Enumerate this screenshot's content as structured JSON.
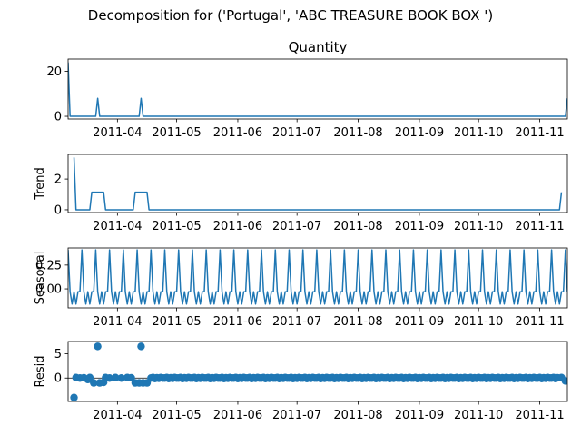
{
  "figure_title": "Decomposition for ('Portugal', 'ABC TREASURE BOOK BOX ')",
  "colors": {
    "line": "#1f77b4",
    "point": "#1f77b4",
    "axis": "#000000",
    "zero_line": "#000000"
  },
  "chart_data": [
    {
      "type": "line",
      "title": "Quantity",
      "ylabel": "",
      "xrange": [
        "2011-03-07",
        "2011-11-15"
      ],
      "ylim": [
        -1.2,
        25.5
      ],
      "yticks": [
        0,
        20
      ],
      "x_tick_labels": [
        "2011-04",
        "2011-05",
        "2011-06",
        "2011-07",
        "2011-08",
        "2011-09",
        "2011-10",
        "2011-11"
      ],
      "series": [
        {
          "points": [
            [
              "2011-03-07",
              24
            ],
            [
              "2011-03-08",
              0
            ],
            [
              "2011-03-21",
              0
            ],
            [
              "2011-03-22",
              8
            ],
            [
              "2011-03-23",
              0
            ],
            [
              "2011-04-12",
              0
            ],
            [
              "2011-04-13",
              8
            ],
            [
              "2011-04-14",
              0
            ],
            [
              "2011-11-14",
              0
            ],
            [
              "2011-11-15",
              8
            ]
          ]
        }
      ]
    },
    {
      "type": "line",
      "title": "",
      "ylabel": "Trend",
      "xrange": [
        "2011-03-07",
        "2011-11-15"
      ],
      "ylim": [
        -0.18,
        3.6
      ],
      "yticks": [
        0,
        2
      ],
      "x_tick_labels": [
        "2011-04",
        "2011-05",
        "2011-06",
        "2011-07",
        "2011-08",
        "2011-09",
        "2011-10",
        "2011-11"
      ],
      "series": [
        {
          "points": [
            [
              "2011-03-10",
              3.4
            ],
            [
              "2011-03-11",
              0
            ],
            [
              "2011-03-18",
              0
            ],
            [
              "2011-03-19",
              1.14
            ],
            [
              "2011-03-25",
              1.14
            ],
            [
              "2011-03-26",
              0
            ],
            [
              "2011-04-09",
              0
            ],
            [
              "2011-04-10",
              1.14
            ],
            [
              "2011-04-16",
              1.14
            ],
            [
              "2011-04-17",
              0
            ],
            [
              "2011-11-11",
              0
            ],
            [
              "2011-11-12",
              1.14
            ]
          ]
        }
      ]
    },
    {
      "type": "line",
      "title": "",
      "ylabel": "Seasonal",
      "xrange": [
        "2011-03-07",
        "2011-11-15"
      ],
      "ylim": [
        -0.2,
        0.43
      ],
      "yticks": [
        0.0,
        0.25
      ],
      "ytick_labels": [
        "0.00",
        "0.25"
      ],
      "x_tick_labels": [
        "2011-04",
        "2011-05",
        "2011-06",
        "2011-07",
        "2011-08",
        "2011-09",
        "2011-10",
        "2011-11"
      ],
      "seasonal_pattern": [
        0.41,
        -0.03,
        -0.16,
        -0.03,
        -0.16,
        -0.03,
        -0.03
      ],
      "pattern_start": "2011-03-07"
    },
    {
      "type": "scatter",
      "title": "",
      "ylabel": "Resid",
      "xrange": [
        "2011-03-07",
        "2011-11-15"
      ],
      "ylim": [
        -4.8,
        7.5
      ],
      "yticks": [
        0,
        5
      ],
      "x_tick_labels": [
        "2011-04",
        "2011-05",
        "2011-06",
        "2011-07",
        "2011-08",
        "2011-09",
        "2011-10",
        "2011-11"
      ],
      "points": [
        [
          "2011-03-10",
          -4.0
        ],
        [
          "2011-03-11",
          0.1
        ],
        [
          "2011-03-13",
          0.0
        ],
        [
          "2011-03-15",
          0.05
        ],
        [
          "2011-03-17",
          -0.3
        ],
        [
          "2011-03-18",
          0.1
        ],
        [
          "2011-03-20",
          -1.0
        ],
        [
          "2011-03-22",
          6.5
        ],
        [
          "2011-03-23",
          -1.0
        ],
        [
          "2011-03-25",
          -0.9
        ],
        [
          "2011-03-26",
          0.1
        ],
        [
          "2011-03-28",
          0.0
        ],
        [
          "2011-03-31",
          0.1
        ],
        [
          "2011-04-03",
          0.0
        ],
        [
          "2011-04-06",
          0.1
        ],
        [
          "2011-04-08",
          0.05
        ],
        [
          "2011-04-10",
          -1.0
        ],
        [
          "2011-04-12",
          -1.0
        ],
        [
          "2011-04-13",
          6.5
        ],
        [
          "2011-04-14",
          -1.0
        ],
        [
          "2011-04-16",
          -1.0
        ],
        [
          "2011-11-12",
          0.1
        ],
        [
          "2011-11-14",
          -0.6
        ]
      ],
      "baseline_pattern": [
        0.0,
        0.1,
        -0.1,
        0.05,
        -0.05,
        0.1,
        0.0
      ],
      "baseline_start": "2011-04-18",
      "baseline_end": "2011-11-10"
    }
  ]
}
